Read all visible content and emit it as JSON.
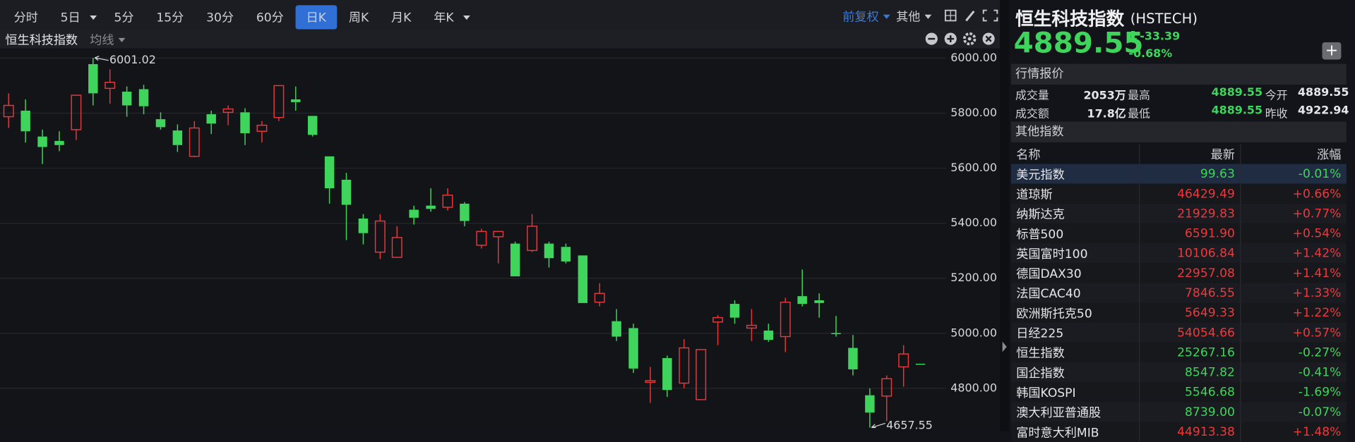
{
  "toolbar": {
    "periods": [
      "分时",
      "5日",
      "5分",
      "15分",
      "30分",
      "60分",
      "日K",
      "周K",
      "月K",
      "年K"
    ],
    "adjust": "前复权",
    "other": "其他"
  },
  "chart_header": {
    "name": "恒生科技指数",
    "indicator": "均线"
  },
  "chart_data": {
    "type": "candlestick",
    "open": [
      5787,
      5809,
      5715,
      5699,
      5740,
      5978,
      5890,
      5878,
      5887,
      5778,
      5737,
      5643,
      5796,
      5803,
      5803,
      5734,
      5784,
      5850,
      5790,
      5643,
      5558,
      5417,
      5295,
      5276,
      5449,
      5464,
      5458,
      5471,
      5320,
      5351,
      5326,
      5301,
      5326,
      5314,
      5283,
      5113,
      5044,
      5019,
      4822,
      4910,
      4819,
      4759,
      5041,
      5107,
      5019,
      5010,
      4988,
      5135,
      5120,
      5001,
      4947,
      4775,
      4772,
      4878,
      4889.55
    ],
    "high": [
      5872,
      5850,
      5740,
      5734,
      5865,
      6001.02,
      5959,
      5897,
      5903,
      5803,
      5759,
      5771,
      5809,
      5828,
      5818,
      5771,
      5900,
      5897,
      5790,
      5643,
      5583,
      5433,
      5433,
      5389,
      5464,
      5527,
      5527,
      5477,
      5380,
      5370,
      5333,
      5433,
      5333,
      5326,
      5283,
      5182,
      5088,
      5035,
      4878,
      4919,
      4979,
      4941,
      5066,
      5120,
      5088,
      5035,
      5129,
      5232,
      5145,
      5063,
      4994,
      4800,
      4847,
      4957,
      4889.55
    ],
    "low": [
      5746,
      5693,
      5615,
      5662,
      5702,
      5828,
      5834,
      5787,
      5796,
      5740,
      5659,
      5640,
      5724,
      5756,
      5684,
      5693,
      5771,
      5809,
      5715,
      5471,
      5339,
      5323,
      5270,
      5276,
      5395,
      5442,
      5446,
      5389,
      5308,
      5254,
      5207,
      5295,
      5239,
      5254,
      5110,
      5098,
      4972,
      4856,
      4747,
      4769,
      4800,
      4759,
      4957,
      5035,
      4972,
      4969,
      4932,
      5098,
      5057,
      4988,
      4847,
      4657.55,
      4681,
      4806,
      4889.55
    ],
    "close": [
      5828,
      5734,
      5677,
      5684,
      5865,
      5872,
      5912,
      5828,
      5825,
      5749,
      5684,
      5746,
      5762,
      5815,
      5727,
      5756,
      5900,
      5840,
      5721,
      5527,
      5467,
      5364,
      5408,
      5348,
      5420,
      5452,
      5502,
      5408,
      5370,
      5370,
      5207,
      5389,
      5273,
      5261,
      5110,
      5145,
      4988,
      4872,
      4828,
      4794,
      4947,
      4941,
      5057,
      5057,
      5029,
      4976,
      5113,
      5107,
      5110,
      4997,
      4869,
      4712,
      4835,
      4925,
      4889.55
    ],
    "up_color": "#e5383b",
    "down_color": "#3fd45b",
    "ylim": [
      4650,
      6070
    ],
    "yticks": [
      {
        "value": 6000,
        "label": "6000.00"
      },
      {
        "value": 5800,
        "label": "5800.00"
      },
      {
        "value": 5600,
        "label": "5600.00"
      },
      {
        "value": 5400,
        "label": "5400.00"
      },
      {
        "value": 5200,
        "label": "5200.00"
      },
      {
        "value": 5000,
        "label": "5000.00"
      },
      {
        "value": 4800,
        "label": "4800.00"
      }
    ],
    "grid": true,
    "high_label": "6001.02",
    "low_label": "4657.55"
  },
  "quote": {
    "name": "恒生科技指数",
    "code": "(HSTECH)",
    "price": "4889.55",
    "change": "-33.39",
    "change_pct": "-0.68%",
    "section": "行情报价",
    "stats": [
      [
        "成交量",
        "2053万",
        "最高",
        "4889.55",
        "今开",
        "4889.55"
      ],
      [
        "成交额",
        "17.8亿",
        "最低",
        "4889.55",
        "昨收",
        "4922.94"
      ]
    ]
  },
  "other_indices": {
    "title": "其他指数",
    "columns": [
      "名称",
      "最新",
      "涨幅"
    ],
    "rows": [
      [
        "美元指数",
        "99.63",
        "-0.01%"
      ],
      [
        "道琼斯",
        "46429.49",
        "+0.66%"
      ],
      [
        "纳斯达克",
        "21929.83",
        "+0.77%"
      ],
      [
        "标普500",
        "6591.90",
        "+0.54%"
      ],
      [
        "英国富时100",
        "10106.84",
        "+1.42%"
      ],
      [
        "德国DAX30",
        "22957.08",
        "+1.41%"
      ],
      [
        "法国CAC40",
        "7846.55",
        "+1.33%"
      ],
      [
        "欧洲斯托克50",
        "5649.33",
        "+1.22%"
      ],
      [
        "日经225",
        "54054.66",
        "+0.57%"
      ],
      [
        "恒生指数",
        "25267.16",
        "-0.27%"
      ],
      [
        "国企指数",
        "8547.82",
        "-0.41%"
      ],
      [
        "韩国KOSPI",
        "5546.68",
        "-1.69%"
      ],
      [
        "澳大利亚普通股",
        "8739.00",
        "-0.07%"
      ],
      [
        "富时意大利MIB",
        "44913.38",
        "+1.48%"
      ]
    ]
  }
}
